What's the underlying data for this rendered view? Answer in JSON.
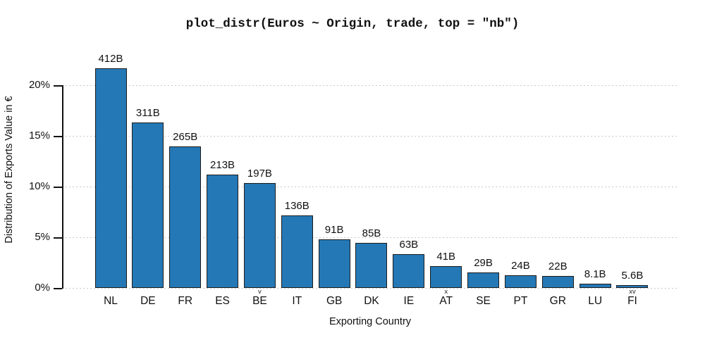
{
  "chart_data": {
    "type": "bar",
    "title": "plot_distr(Euros ~ Origin, trade, top = \"nb\")",
    "xlabel": "Exporting Country",
    "ylabel": "Distribution of Exports Value in €",
    "categories": [
      "NL",
      "DE",
      "FR",
      "ES",
      "BE",
      "IT",
      "GB",
      "DK",
      "IE",
      "AT",
      "SE",
      "PT",
      "GR",
      "LU",
      "FI"
    ],
    "bar_labels": [
      "412B",
      "311B",
      "265B",
      "213B",
      "197B",
      "136B",
      "91B",
      "85B",
      "63B",
      "41B",
      "29B",
      "24B",
      "22B",
      "8.1B",
      "5.6B"
    ],
    "values_billions": [
      412,
      311,
      265,
      213,
      197,
      136,
      91,
      85,
      63,
      41,
      29,
      24,
      22,
      8.1,
      5.6
    ],
    "values_percent": [
      21.65,
      16.35,
      13.93,
      11.19,
      10.35,
      7.15,
      4.78,
      4.47,
      3.31,
      2.15,
      1.52,
      1.26,
      1.16,
      0.43,
      0.29
    ],
    "index_marks": [
      "",
      "",
      "",
      "",
      "v",
      "",
      "",
      "",
      "",
      "x",
      "",
      "",
      "",
      "",
      "xv"
    ],
    "yticks": [
      "0%",
      "5%",
      "10%",
      "15%",
      "20%"
    ],
    "ytick_values": [
      0,
      5,
      10,
      15,
      20
    ],
    "ylim": [
      0,
      21.65
    ],
    "grid": "horizontal dotted",
    "legend": "none",
    "colors": {
      "bar_fill": "#2478b5",
      "bar_edge": "#1c1c1c",
      "grid": "#c9c9c9",
      "text": "#111111"
    }
  }
}
